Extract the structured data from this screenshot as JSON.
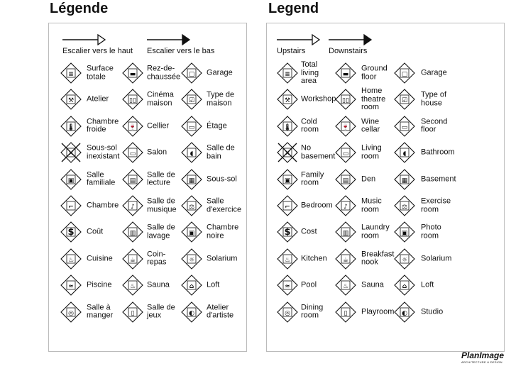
{
  "panels": [
    {
      "title": "Légende",
      "upstairs": "Escalier vers le haut",
      "downstairs": "Escalier vers le bas",
      "items": [
        [
          "Surface\ntotale",
          "Rez-de-\nchaussée",
          "Garage"
        ],
        [
          "Atelier",
          "Cinéma\nmaison",
          "Type de\nmaison"
        ],
        [
          "Chambre\nfroide",
          "Cellier",
          "Étage"
        ],
        [
          "Sous-sol\ninexistant",
          "Salon",
          "Salle de\nbain"
        ],
        [
          "Salle\nfamiliale",
          "Salle de\nlecture",
          "Sous-sol"
        ],
        [
          "Chambre",
          "Salle de\nmusique",
          "Salle\nd'exercice"
        ],
        [
          "Coût",
          "Salle de\nlavage",
          "Chambre\nnoire"
        ],
        [
          "Cuisine",
          "Coin-\nrepas",
          "Solarium"
        ],
        [
          "Piscine",
          "Sauna",
          "Loft"
        ],
        [
          "Salle à\nmanger",
          "Salle de\njeux",
          "Atelier\nd'artiste"
        ]
      ]
    },
    {
      "title": "Legend",
      "upstairs": "Upstairs",
      "downstairs": "Downstairs",
      "items": [
        [
          "Total\nliving\narea",
          "Ground\nfloor",
          "Garage"
        ],
        [
          "Workshop",
          "Home\ntheatre\nroom",
          "Type of\nhouse"
        ],
        [
          "Cold\nroom",
          "Wine\ncellar",
          "Second\nfloor"
        ],
        [
          "No\nbasement",
          "Living\nroom",
          "Bathroom"
        ],
        [
          "Family\nroom",
          "Den",
          "Basement"
        ],
        [
          "Bedroom",
          "Music\nroom",
          "Exercise\nroom"
        ],
        [
          "Cost",
          "Laundry\nroom",
          "Photo\nroom"
        ],
        [
          "Kitchen",
          "Breakfast\nnook",
          "Solarium"
        ],
        [
          "Pool",
          "Sauna",
          "Loft"
        ],
        [
          "Dining\nroom",
          "Playroom",
          "Studio"
        ]
      ]
    }
  ],
  "icons": [
    [
      "total-area-icon",
      "ground-floor-icon",
      "garage-icon"
    ],
    [
      "hammer-icon",
      "theatre-icon",
      "house-type-icon"
    ],
    [
      "thermometer-icon",
      "wine-icon",
      "second-floor-icon"
    ],
    [
      "no-basement-icon",
      "sofa-icon",
      "bathroom-icon"
    ],
    [
      "tv-icon",
      "book-icon",
      "basement-icon"
    ],
    [
      "bed-icon",
      "music-note-icon",
      "dumbbell-icon"
    ],
    [
      "dollar-icon",
      "laundry-icon",
      "camera-icon"
    ],
    [
      "kitchen-icon",
      "coffee-icon",
      "sun-icon"
    ],
    [
      "pool-icon",
      "sauna-icon",
      "loft-icon"
    ],
    [
      "dining-icon",
      "joystick-icon",
      "palette-icon"
    ]
  ],
  "glyphs": [
    [
      "≡",
      "▬",
      "▢"
    ],
    [
      "⚒",
      "▯▯",
      "☑"
    ],
    [
      "🌡",
      "🍷",
      "▭"
    ],
    [
      "✕",
      "▭",
      "◖"
    ],
    [
      "▣",
      "▤",
      "▦"
    ],
    [
      "⌐",
      "♪",
      "⚖"
    ],
    [
      "$",
      "▥",
      "▣"
    ],
    [
      "♨",
      "☕",
      "☼"
    ],
    [
      "≈",
      "♨",
      "⌂"
    ],
    [
      "◎",
      "▯",
      "◐"
    ]
  ],
  "logo": {
    "name": "PlanImage",
    "tagline": "ARCHITECTURE & DESIGN"
  }
}
